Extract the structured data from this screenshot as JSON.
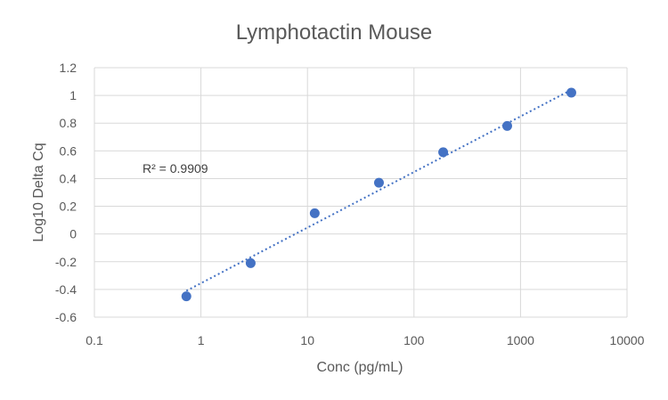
{
  "chart_data": {
    "type": "scatter",
    "title": "Lymphotactin Mouse",
    "xlabel": "Conc (pg/mL)",
    "ylabel": "Log10 Delta Cq",
    "x_scale": "log",
    "xlim": [
      0.1,
      10000
    ],
    "ylim": [
      -0.6,
      1.2
    ],
    "x_ticks": [
      0.1,
      1,
      10,
      100,
      1000,
      10000
    ],
    "x_tick_labels": [
      "0.1",
      "1",
      "10",
      "100",
      "1000",
      "10000"
    ],
    "y_ticks": [
      -0.6,
      -0.4,
      -0.2,
      0,
      0.2,
      0.4,
      0.6,
      0.8,
      1,
      1.2
    ],
    "y_tick_labels": [
      "-0.6",
      "-0.4",
      "-0.2",
      "0",
      "0.2",
      "0.4",
      "0.6",
      "0.8",
      "1",
      "1.2"
    ],
    "grid": true,
    "series": [
      {
        "color": "#4472c4",
        "x": [
          0.73,
          2.93,
          11.7,
          46.9,
          188,
          750,
          3000
        ],
        "y": [
          -0.45,
          -0.21,
          0.15,
          0.37,
          0.59,
          0.78,
          1.02
        ]
      }
    ],
    "trendline": {
      "style": "dotted",
      "color": "#4472c4",
      "x": [
        0.73,
        3000
      ],
      "y": [
        -0.41,
        1.04
      ],
      "label": "R² = 0.9909"
    }
  }
}
